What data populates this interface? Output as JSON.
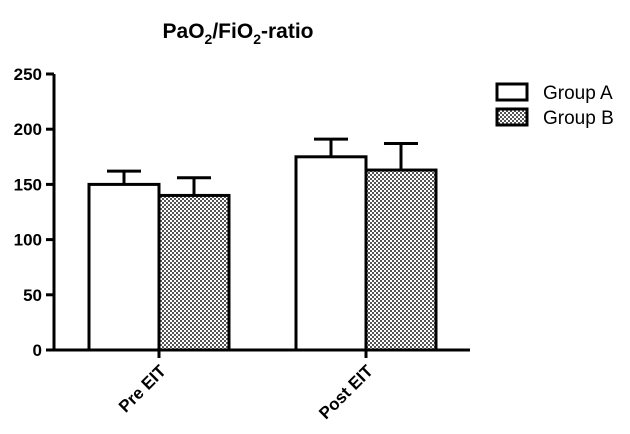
{
  "chart_data": {
    "type": "bar",
    "title_main": "PaO",
    "title_sub1": "2",
    "title_mid": "/FiO",
    "title_sub2": "2",
    "title_end": "-ratio",
    "xlabel": "",
    "ylabel": "",
    "categories": [
      "Pre EIT",
      "Post EIT"
    ],
    "ylim": [
      0,
      250
    ],
    "yticks": [
      0,
      50,
      100,
      150,
      200,
      250
    ],
    "legend_position": "top-right",
    "grid": false,
    "series": [
      {
        "name": "Group A",
        "values": [
          150,
          175
        ],
        "errors": [
          12,
          16
        ],
        "fill": "white"
      },
      {
        "name": "Group B",
        "values": [
          140,
          163
        ],
        "errors": [
          16,
          24
        ],
        "fill": "checkered"
      }
    ]
  }
}
